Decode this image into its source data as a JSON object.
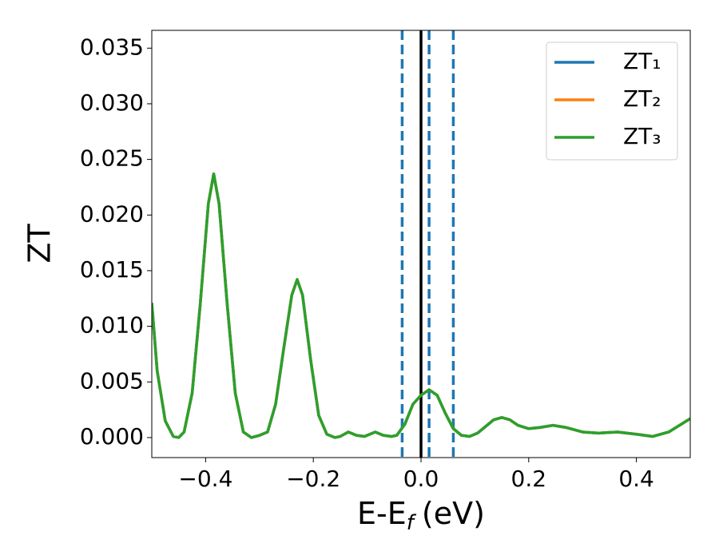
{
  "chart_data": {
    "type": "line",
    "ylabel": "ZT",
    "xlabel": [
      "E-E",
      "f",
      "(eV)"
    ],
    "x": [
      -0.5,
      -0.49,
      -0.475,
      -0.46,
      -0.45,
      -0.44,
      -0.425,
      -0.41,
      -0.395,
      -0.385,
      -0.375,
      -0.36,
      -0.345,
      -0.33,
      -0.315,
      -0.3,
      -0.285,
      -0.27,
      -0.255,
      -0.24,
      -0.23,
      -0.22,
      -0.205,
      -0.19,
      -0.175,
      -0.16,
      -0.15,
      -0.135,
      -0.12,
      -0.105,
      -0.085,
      -0.07,
      -0.055,
      -0.045,
      -0.03,
      -0.015,
      0.0,
      0.015,
      0.03,
      0.045,
      0.06,
      0.075,
      0.09,
      0.105,
      0.12,
      0.135,
      0.15,
      0.165,
      0.18,
      0.2,
      0.22,
      0.245,
      0.27,
      0.3,
      0.33,
      0.365,
      0.4,
      0.43,
      0.46,
      0.5
    ],
    "series": [
      {
        "name": "ZT₁",
        "color": "#1f77b4",
        "values": [
          0.0121,
          0.006,
          0.0015,
          0.0001,
          0.0,
          0.0005,
          0.004,
          0.012,
          0.021,
          0.0237,
          0.021,
          0.012,
          0.004,
          0.0005,
          0.0,
          0.0002,
          0.0005,
          0.003,
          0.008,
          0.0128,
          0.0142,
          0.0128,
          0.007,
          0.002,
          0.0003,
          0.0,
          0.0001,
          0.0005,
          0.0002,
          0.0001,
          0.0005,
          0.0002,
          0.0001,
          0.0002,
          0.0012,
          0.003,
          0.0038,
          0.0043,
          0.0038,
          0.0022,
          0.0008,
          0.0002,
          0.0001,
          0.0004,
          0.001,
          0.0016,
          0.0018,
          0.0016,
          0.0011,
          0.0008,
          0.0009,
          0.0011,
          0.0009,
          0.0005,
          0.0004,
          0.0005,
          0.0003,
          0.0001,
          0.0005,
          0.0017
        ]
      },
      {
        "name": "ZT₂",
        "color": "#ff7f0e",
        "values": [
          0.0121,
          0.006,
          0.0015,
          0.0001,
          0.0,
          0.0005,
          0.004,
          0.012,
          0.021,
          0.0237,
          0.021,
          0.012,
          0.004,
          0.0005,
          0.0,
          0.0002,
          0.0005,
          0.003,
          0.008,
          0.0128,
          0.0142,
          0.0128,
          0.007,
          0.002,
          0.0003,
          0.0,
          0.0001,
          0.0005,
          0.0002,
          0.0001,
          0.0005,
          0.0002,
          0.0001,
          0.0002,
          0.0012,
          0.003,
          0.0038,
          0.0043,
          0.0038,
          0.0022,
          0.0008,
          0.0002,
          0.0001,
          0.0004,
          0.001,
          0.0016,
          0.0018,
          0.0016,
          0.0011,
          0.0008,
          0.0009,
          0.0011,
          0.0009,
          0.0005,
          0.0004,
          0.0005,
          0.0003,
          0.0001,
          0.0005,
          0.0017
        ]
      },
      {
        "name": "ZT₃",
        "color": "#2ca02c",
        "values": [
          0.0121,
          0.006,
          0.0015,
          0.0001,
          0.0,
          0.0005,
          0.004,
          0.012,
          0.021,
          0.0237,
          0.021,
          0.012,
          0.004,
          0.0005,
          0.0,
          0.0002,
          0.0005,
          0.003,
          0.008,
          0.0128,
          0.0142,
          0.0128,
          0.007,
          0.002,
          0.0003,
          0.0,
          0.0001,
          0.0005,
          0.0002,
          0.0001,
          0.0005,
          0.0002,
          0.0001,
          0.0002,
          0.0012,
          0.003,
          0.0038,
          0.0043,
          0.0038,
          0.0022,
          0.0008,
          0.0002,
          0.0001,
          0.0004,
          0.001,
          0.0016,
          0.0018,
          0.0016,
          0.0011,
          0.0008,
          0.0009,
          0.0011,
          0.0009,
          0.0005,
          0.0004,
          0.0005,
          0.0003,
          0.0001,
          0.0005,
          0.0017
        ]
      }
    ],
    "vlines": [
      {
        "x": -0.035,
        "color": "#1f77b4",
        "style": "dashed"
      },
      {
        "x": 0.015,
        "color": "#1f77b4",
        "style": "dashed"
      },
      {
        "x": 0.06,
        "color": "#1f77b4",
        "style": "dashed"
      },
      {
        "x": 0,
        "color": "#000000",
        "style": "solid"
      }
    ],
    "xlim": [
      -0.5,
      0.5
    ],
    "ylim": [
      -0.0018,
      0.0366
    ],
    "xticks": [
      {
        "value": -0.4,
        "label": "−0.4"
      },
      {
        "value": -0.2,
        "label": "−0.2"
      },
      {
        "value": 0,
        "label": "0.0"
      },
      0.2,
      0.4
    ],
    "yticks": [
      {
        "value": 0,
        "label": "0.000"
      },
      0.005,
      {
        "value": 0.01,
        "label": "0.010"
      },
      0.015,
      {
        "value": 0.02,
        "label": "0.020"
      },
      0.025,
      {
        "value": 0.03,
        "label": "0.030"
      },
      0.035
    ],
    "legend": "upper right",
    "grid": false
  }
}
